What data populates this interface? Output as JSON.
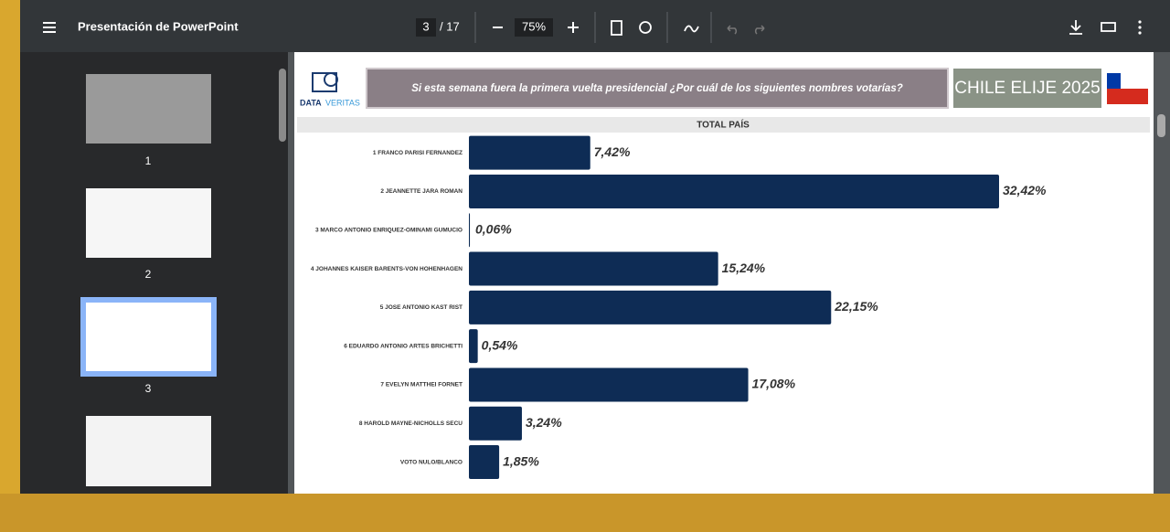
{
  "toolbar": {
    "title": "Presentación de PowerPoint",
    "page": "3",
    "page_total": "/ 17",
    "zoom": "75%"
  },
  "thumbnails": [
    {
      "label": "1"
    },
    {
      "label": "2"
    },
    {
      "label": "3"
    }
  ],
  "slide": {
    "logo_a": "DATA",
    "logo_b": "VERITAS",
    "question": "Si esta semana fuera la primera vuelta presidencial ¿Por cuál de los siguientes nombres votarías?",
    "badge": "CHILE ELIJE 2025"
  },
  "chart_data": {
    "type": "bar",
    "orientation": "horizontal",
    "title": "TOTAL PAÍS",
    "categories": [
      "1 FRANCO PARISI FERNANDEZ",
      "2 JEANNETTE JARA ROMAN",
      "3 MARCO ANTONIO ENRIQUEZ-OMINAMI GUMUCIO",
      "4 JOHANNES KAISER BARENTS-VON HOHENHAGEN",
      "5 JOSE ANTONIO KAST RIST",
      "6 EDUARDO ANTONIO ARTES BRICHETTI",
      "7 EVELYN MATTHEI FORNET",
      "8 HAROLD MAYNE-NICHOLLS SECU",
      "VOTO NULO/BLANCO"
    ],
    "values": [
      7.42,
      32.42,
      0.06,
      15.24,
      22.15,
      0.54,
      17.08,
      3.24,
      1.85
    ],
    "value_labels": [
      "7,42%",
      "32,42%",
      "0,06%",
      "15,24%",
      "22,15%",
      "0,54%",
      "17,08%",
      "3,24%",
      "1,85%"
    ],
    "color": "#0e2c55"
  }
}
